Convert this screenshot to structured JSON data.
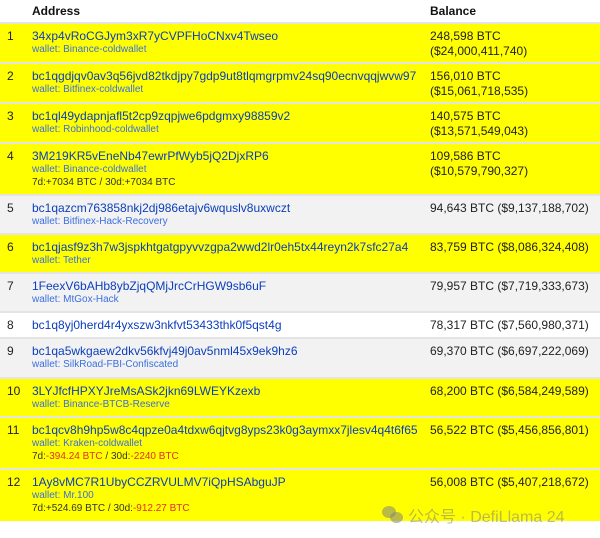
{
  "table": {
    "headers": {
      "rank": "",
      "address": "Address",
      "balance": "Balance"
    },
    "rows": [
      {
        "rank": "1",
        "address": "34xp4vRoCGJym3xR7yCVPFHoCNxv4Twseo",
        "wallet": "wallet: Binance-coldwallet",
        "balance": "248,598 BTC ($24,000,411,740)",
        "bg": "yellow"
      },
      {
        "rank": "2",
        "address": "bc1qgdjqv0av3q56jvd82tkdjpy7gdp9ut8tlqmgrpmv24sq90ecnvqqjwvw97",
        "wallet": "wallet: Bitfinex-coldwallet",
        "balance": "156,010 BTC ($15,061,718,535)",
        "bg": "yellow"
      },
      {
        "rank": "3",
        "address": "bc1ql49ydapnjafl5t2cp9zqpjwe6pdgmxy98859v2",
        "wallet": "wallet: Robinhood-coldwallet",
        "balance": "140,575 BTC ($13,571,549,043)",
        "bg": "yellow"
      },
      {
        "rank": "4",
        "address": "3M219KR5vEneNb47ewrPfWyb5jQ2DjxRP6",
        "wallet": "wallet: Binance-coldwallet",
        "balance": "109,586 BTC ($10,579,790,327)",
        "bg": "yellow",
        "change": {
          "d7_label": "7d:",
          "d7": "+7034 BTC",
          "d7_neg": false,
          "sep": " / ",
          "d30_label": "30d:",
          "d30": "+7034 BTC",
          "d30_neg": false
        }
      },
      {
        "rank": "5",
        "address": "bc1qazcm763858nkj2dj986etajv6wquslv8uxwczt",
        "wallet": "wallet: Bitfinex-Hack-Recovery",
        "balance": "94,643 BTC ($9,137,188,702)",
        "bg": "gray"
      },
      {
        "rank": "6",
        "address": "bc1qjasf9z3h7w3jspkhtgatgpyvvzgpa2wwd2lr0eh5tx44reyn2k7sfc27a4",
        "wallet": "wallet: Tether",
        "balance": "83,759 BTC ($8,086,324,408)",
        "bg": "yellow"
      },
      {
        "rank": "7",
        "address": "1FeexV6bAHb8ybZjqQMjJrcCrHGW9sb6uF",
        "wallet": "wallet: MtGox-Hack",
        "balance": "79,957 BTC ($7,719,333,673)",
        "bg": "gray"
      },
      {
        "rank": "8",
        "address": "bc1q8yj0herd4r4yxszw3nkfvt53433thk0f5qst4g",
        "wallet": "",
        "balance": "78,317 BTC ($7,560,980,371)",
        "bg": "white"
      },
      {
        "rank": "9",
        "address": "bc1qa5wkgaew2dkv56kfvj49j0av5nml45x9ek9hz6",
        "wallet": "wallet: SilkRoad-FBI-Confiscated",
        "balance": "69,370 BTC ($6,697,222,069)",
        "bg": "gray"
      },
      {
        "rank": "10",
        "address": "3LYJfcfHPXYJreMsASk2jkn69LWEYKzexb",
        "wallet": "wallet: Binance-BTCB-Reserve",
        "balance": "68,200 BTC ($6,584,249,589)",
        "bg": "yellow"
      },
      {
        "rank": "11",
        "address": "bc1qcv8h9hp5w8c4qpze0a4tdxw6qjtvg8yps23k0g3aymxx7jlesv4q4t6f65",
        "wallet": "wallet: Kraken-coldwallet",
        "balance": "56,522 BTC ($5,456,856,801)",
        "bg": "yellow",
        "change": {
          "d7_label": "7d:",
          "d7": "-394.24 BTC",
          "d7_neg": true,
          "sep": " / ",
          "d30_label": "30d:",
          "d30": "-2240 BTC",
          "d30_neg": true
        }
      },
      {
        "rank": "12",
        "address": "1Ay8vMC7R1UbyCCZRVULMV7iQpHSAbguJP",
        "wallet": "wallet: Mr.100",
        "balance": "56,008 BTC ($5,407,218,672)",
        "bg": "yellow",
        "change": {
          "d7_label": "7d:",
          "d7": "+524.69 BTC",
          "d7_neg": false,
          "sep": " / ",
          "d30_label": "30d:",
          "d30": "-912.27 BTC",
          "d30_neg": true
        }
      }
    ]
  },
  "colors": {
    "highlight": "#ffff00",
    "alt_row": "#f2f2f2",
    "link": "#0b3ebd",
    "wallet": "#3b6fe0",
    "negative": "#e0302a"
  },
  "watermark": {
    "text": "公众号 · DefiLlama 24",
    "icon": "wechat-icon"
  }
}
